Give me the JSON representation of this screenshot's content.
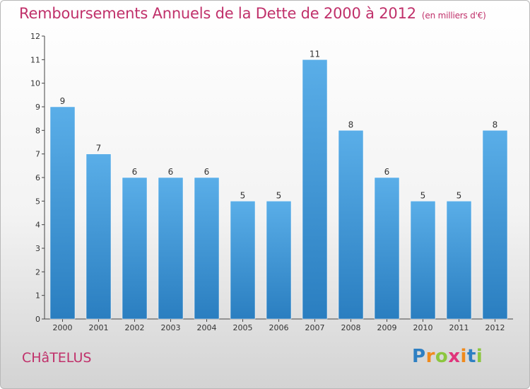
{
  "title": "Remboursements Annuels de la Dette de 2000 à 2012",
  "subtitle": "(en milliers d'€)",
  "commune": "CHâTELUS",
  "logo": {
    "text": "Proxiti",
    "letters": [
      "P",
      "r",
      "o",
      "x",
      "i",
      "t",
      "i"
    ],
    "colors": [
      "#2e7fc2",
      "#f08a1c",
      "#8cc63f",
      "#e0347b",
      "#f08a1c",
      "#2e7fc2",
      "#8cc63f"
    ]
  },
  "colors": {
    "title": "#c0306a",
    "bar_top": "#5aaee8",
    "bar_bottom": "#2a7ec0"
  },
  "chart_data": {
    "type": "bar",
    "categories": [
      "2000",
      "2001",
      "2002",
      "2003",
      "2004",
      "2005",
      "2006",
      "2007",
      "2008",
      "2009",
      "2010",
      "2011",
      "2012"
    ],
    "values": [
      9,
      7,
      6,
      6,
      6,
      5,
      5,
      11,
      8,
      6,
      5,
      5,
      8
    ],
    "yticks": [
      0,
      1,
      2,
      3,
      4,
      5,
      6,
      7,
      8,
      9,
      10,
      11,
      12
    ],
    "ylim": [
      0,
      12
    ],
    "grid": false,
    "data_labels": true
  }
}
